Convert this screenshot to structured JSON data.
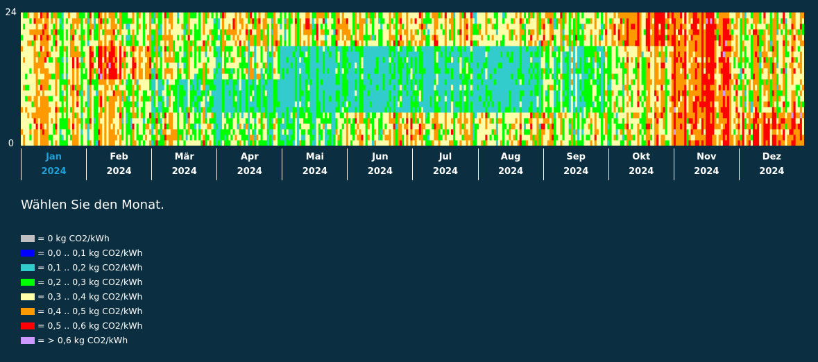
{
  "chart_data": {
    "type": "heatmap",
    "y_ticks": [
      "24",
      "0"
    ],
    "ylim": [
      0,
      24
    ],
    "months": [
      {
        "name": "Jan",
        "year": "2024",
        "selected": true
      },
      {
        "name": "Feb",
        "year": "2024",
        "selected": false
      },
      {
        "name": "Mär",
        "year": "2024",
        "selected": false
      },
      {
        "name": "Apr",
        "year": "2024",
        "selected": false
      },
      {
        "name": "Mai",
        "year": "2024",
        "selected": false
      },
      {
        "name": "Jun",
        "year": "2024",
        "selected": false
      },
      {
        "name": "Jul",
        "year": "2024",
        "selected": false
      },
      {
        "name": "Aug",
        "year": "2024",
        "selected": false
      },
      {
        "name": "Sep",
        "year": "2024",
        "selected": false
      },
      {
        "name": "Okt",
        "year": "2024",
        "selected": false
      },
      {
        "name": "Nov",
        "year": "2024",
        "selected": false
      },
      {
        "name": "Dez",
        "year": "2024",
        "selected": false
      }
    ],
    "legend": [
      {
        "label": "= 0 kg CO2/kWh",
        "color": "#c0c0c0"
      },
      {
        "label": "= 0,0 .. 0,1 kg CO2/kWh",
        "color": "#0000ff"
      },
      {
        "label": "= 0,1 .. 0,2 kg CO2/kWh",
        "color": "#33cccc"
      },
      {
        "label": "= 0,2 .. 0,3 kg CO2/kWh",
        "color": "#00ff00"
      },
      {
        "label": "= 0,3 .. 0,4 kg CO2/kWh",
        "color": "#ffffaa"
      },
      {
        "label": "= 0,4 .. 0,5 kg CO2/kWh",
        "color": "#ff9900"
      },
      {
        "label": "= 0,5 .. 0,6 kg CO2/kWh",
        "color": "#ff0000"
      },
      {
        "label": "= > 0,6 kg CO2/kWh",
        "color": "#cc99ff"
      }
    ],
    "approx_monthly_profile": {
      "Jan": [
        4,
        4,
        4,
        4
      ],
      "Feb": [
        4,
        4,
        5,
        4
      ],
      "Mär": [
        4,
        3,
        4,
        4
      ],
      "Apr": [
        3,
        2,
        3,
        4
      ],
      "Mai": [
        3,
        2,
        2,
        4
      ],
      "Jun": [
        4,
        2,
        2,
        4
      ],
      "Jul": [
        4,
        2,
        2,
        4
      ],
      "Aug": [
        4,
        2,
        2,
        4
      ],
      "Sep": [
        4,
        3,
        3,
        4
      ],
      "Okt": [
        4,
        4,
        4,
        5
      ],
      "Nov": [
        5,
        5,
        5,
        5
      ],
      "Dez": [
        5,
        4,
        4,
        4
      ]
    }
  },
  "instruction": "Wählen Sie den Monat."
}
